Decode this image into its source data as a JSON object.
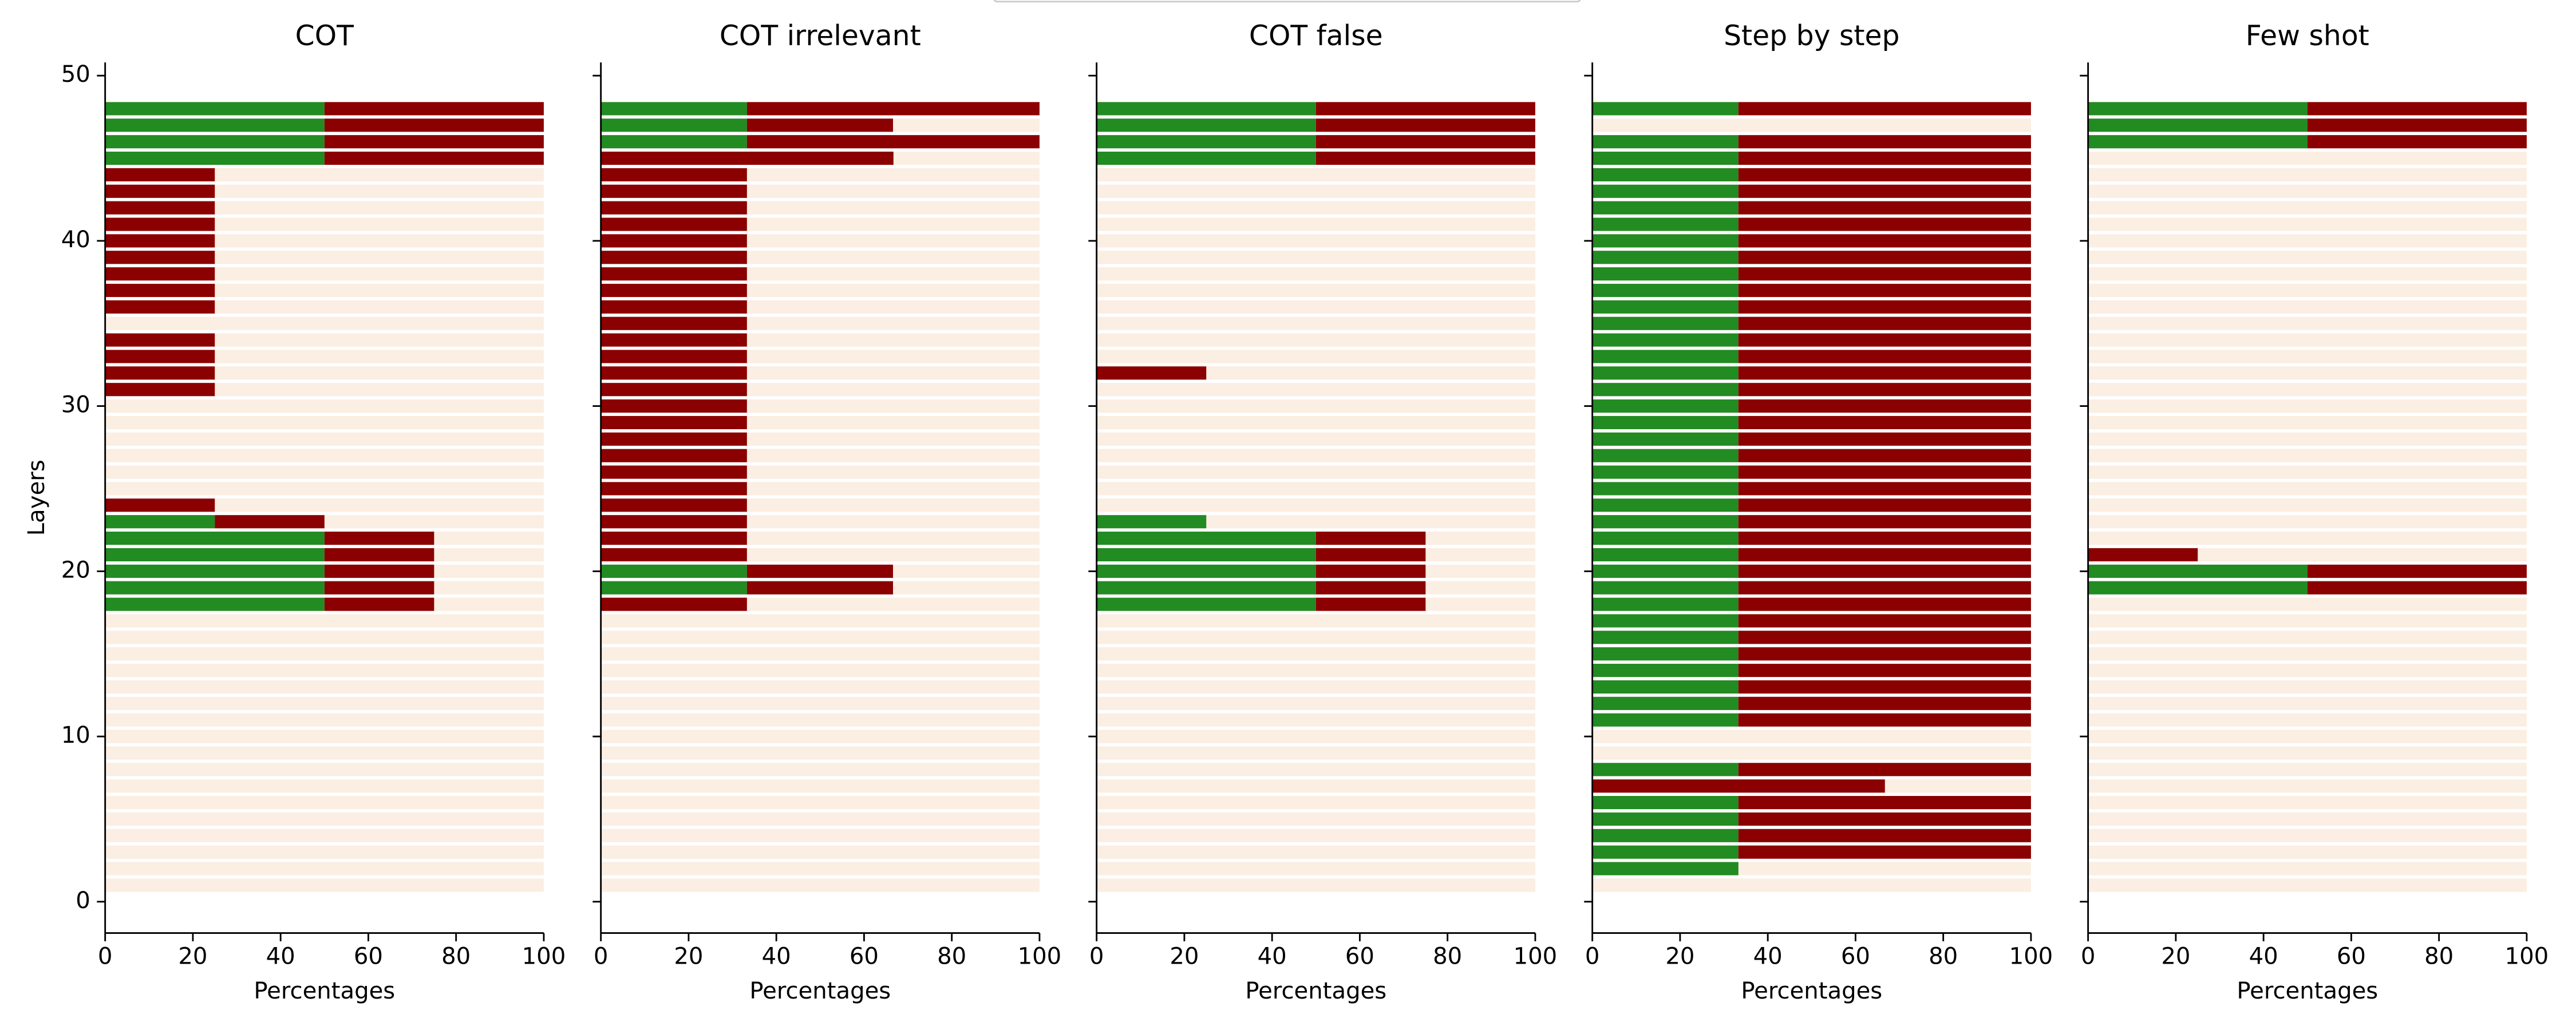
{
  "chart_data": [
    {
      "type": "barh",
      "title": "COT",
      "x_label": "Percentages",
      "y_label": "Layers",
      "y": [
        1,
        2,
        3,
        4,
        5,
        6,
        7,
        8,
        9,
        10,
        11,
        12,
        13,
        14,
        15,
        16,
        17,
        18,
        19,
        20,
        21,
        22,
        23,
        24,
        25,
        26,
        27,
        28,
        29,
        30,
        31,
        32,
        33,
        34,
        35,
        36,
        37,
        38,
        39,
        40,
        41,
        42,
        43,
        44,
        45,
        46,
        47,
        48
      ],
      "series": [
        {
          "color": "#228b22",
          "values": [
            0,
            0,
            0,
            0,
            0,
            0,
            0,
            0,
            0,
            0,
            0,
            0,
            0,
            0,
            0,
            0,
            0,
            50,
            50,
            50,
            50,
            50,
            25,
            0,
            0,
            0,
            0,
            0,
            0,
            0,
            0,
            0,
            0,
            0,
            0,
            0,
            0,
            0,
            0,
            0,
            0,
            0,
            0,
            0,
            50,
            50,
            50,
            50
          ]
        },
        {
          "color": "#8b0000",
          "values": [
            0,
            0,
            0,
            0,
            0,
            0,
            0,
            0,
            0,
            0,
            0,
            0,
            0,
            0,
            0,
            0,
            0,
            25,
            25,
            25,
            25,
            25,
            25,
            25,
            0,
            0,
            0,
            0,
            0,
            0,
            25,
            25,
            25,
            25,
            0,
            25,
            25,
            25,
            25,
            25,
            25,
            25,
            25,
            25,
            50,
            50,
            50,
            50
          ]
        }
      ],
      "row_color": "#fbeee2",
      "xlim": [
        0,
        100
      ],
      "xticks": [
        0,
        20,
        40,
        60,
        80,
        100
      ],
      "ylim": [
        -1.9,
        50.8
      ],
      "yticks": [
        0,
        10,
        20,
        30,
        40,
        50
      ],
      "ytick_labels": true
    },
    {
      "type": "barh",
      "title": "COT irrelevant",
      "x_label": "Percentages",
      "y": [
        1,
        2,
        3,
        4,
        5,
        6,
        7,
        8,
        9,
        10,
        11,
        12,
        13,
        14,
        15,
        16,
        17,
        18,
        19,
        20,
        21,
        22,
        23,
        24,
        25,
        26,
        27,
        28,
        29,
        30,
        31,
        32,
        33,
        34,
        35,
        36,
        37,
        38,
        39,
        40,
        41,
        42,
        43,
        44,
        45,
        46,
        47,
        48
      ],
      "series": [
        {
          "color": "#228b22",
          "values": [
            0,
            0,
            0,
            0,
            0,
            0,
            0,
            0,
            0,
            0,
            0,
            0,
            0,
            0,
            0,
            0,
            0,
            0,
            33.3,
            33.3,
            0,
            0,
            0,
            0,
            0,
            0,
            0,
            0,
            0,
            0,
            0,
            0,
            0,
            0,
            0,
            0,
            0,
            0,
            0,
            0,
            0,
            0,
            0,
            0,
            0,
            33.3,
            33.3,
            33.3
          ]
        },
        {
          "color": "#8b0000",
          "values": [
            0,
            0,
            0,
            0,
            0,
            0,
            0,
            0,
            0,
            0,
            0,
            0,
            0,
            0,
            0,
            0,
            0,
            33.3,
            33.3,
            33.3,
            33.3,
            33.3,
            33.3,
            33.3,
            33.3,
            33.3,
            33.3,
            33.3,
            33.3,
            33.3,
            33.3,
            33.3,
            33.3,
            33.3,
            33.3,
            33.3,
            33.3,
            33.3,
            33.3,
            33.3,
            33.3,
            33.3,
            33.3,
            33.3,
            66.7,
            66.7,
            33.3,
            66.7
          ]
        }
      ],
      "row_color": "#fbeee2",
      "xlim": [
        0,
        100
      ],
      "xticks": [
        0,
        20,
        40,
        60,
        80,
        100
      ],
      "ylim": [
        -1.9,
        50.8
      ],
      "yticks": [
        0,
        10,
        20,
        30,
        40,
        50
      ],
      "ytick_labels": false
    },
    {
      "type": "barh",
      "title": "COT false",
      "x_label": "Percentages",
      "y": [
        1,
        2,
        3,
        4,
        5,
        6,
        7,
        8,
        9,
        10,
        11,
        12,
        13,
        14,
        15,
        16,
        17,
        18,
        19,
        20,
        21,
        22,
        23,
        24,
        25,
        26,
        27,
        28,
        29,
        30,
        31,
        32,
        33,
        34,
        35,
        36,
        37,
        38,
        39,
        40,
        41,
        42,
        43,
        44,
        45,
        46,
        47,
        48
      ],
      "series": [
        {
          "color": "#228b22",
          "values": [
            0,
            0,
            0,
            0,
            0,
            0,
            0,
            0,
            0,
            0,
            0,
            0,
            0,
            0,
            0,
            0,
            0,
            50,
            50,
            50,
            50,
            50,
            25,
            0,
            0,
            0,
            0,
            0,
            0,
            0,
            0,
            0,
            0,
            0,
            0,
            0,
            0,
            0,
            0,
            0,
            0,
            0,
            0,
            0,
            50,
            50,
            50,
            50
          ]
        },
        {
          "color": "#8b0000",
          "values": [
            0,
            0,
            0,
            0,
            0,
            0,
            0,
            0,
            0,
            0,
            0,
            0,
            0,
            0,
            0,
            0,
            0,
            25,
            25,
            25,
            25,
            25,
            0,
            0,
            0,
            0,
            0,
            0,
            0,
            0,
            0,
            25,
            0,
            0,
            0,
            0,
            0,
            0,
            0,
            0,
            0,
            0,
            0,
            0,
            50,
            50,
            50,
            50
          ]
        }
      ],
      "row_color": "#fbeee2",
      "xlim": [
        0,
        100
      ],
      "xticks": [
        0,
        20,
        40,
        60,
        80,
        100
      ],
      "ylim": [
        -1.9,
        50.8
      ],
      "yticks": [
        0,
        10,
        20,
        30,
        40,
        50
      ],
      "ytick_labels": false
    },
    {
      "type": "barh",
      "title": "Step by step",
      "x_label": "Percentages",
      "y": [
        1,
        2,
        3,
        4,
        5,
        6,
        7,
        8,
        9,
        10,
        11,
        12,
        13,
        14,
        15,
        16,
        17,
        18,
        19,
        20,
        21,
        22,
        23,
        24,
        25,
        26,
        27,
        28,
        29,
        30,
        31,
        32,
        33,
        34,
        35,
        36,
        37,
        38,
        39,
        40,
        41,
        42,
        43,
        44,
        45,
        46,
        47,
        48
      ],
      "series": [
        {
          "color": "#228b22",
          "values": [
            0,
            33.3,
            33.3,
            33.3,
            33.3,
            33.3,
            0,
            33.3,
            0,
            0,
            33.3,
            33.3,
            33.3,
            33.3,
            33.3,
            33.3,
            33.3,
            33.3,
            33.3,
            33.3,
            33.3,
            33.3,
            33.3,
            33.3,
            33.3,
            33.3,
            33.3,
            33.3,
            33.3,
            33.3,
            33.3,
            33.3,
            33.3,
            33.3,
            33.3,
            33.3,
            33.3,
            33.3,
            33.3,
            33.3,
            33.3,
            33.3,
            33.3,
            33.3,
            33.3,
            33.3,
            0,
            33.3
          ]
        },
        {
          "color": "#8b0000",
          "values": [
            0,
            0,
            66.7,
            66.7,
            66.7,
            66.7,
            66.7,
            66.7,
            0,
            0,
            66.7,
            66.7,
            66.7,
            66.7,
            66.7,
            66.7,
            66.7,
            66.7,
            66.7,
            66.7,
            66.7,
            66.7,
            66.7,
            66.7,
            66.7,
            66.7,
            66.7,
            66.7,
            66.7,
            66.7,
            66.7,
            66.7,
            66.7,
            66.7,
            66.7,
            66.7,
            66.7,
            66.7,
            66.7,
            66.7,
            66.7,
            66.7,
            66.7,
            66.7,
            66.7,
            66.7,
            0,
            66.7
          ]
        }
      ],
      "row_color": "#fbeee2",
      "xlim": [
        0,
        100
      ],
      "xticks": [
        0,
        20,
        40,
        60,
        80,
        100
      ],
      "ylim": [
        -1.9,
        50.8
      ],
      "yticks": [
        0,
        10,
        20,
        30,
        40,
        50
      ],
      "ytick_labels": false
    },
    {
      "type": "barh",
      "title": "Few shot",
      "x_label": "Percentages",
      "y": [
        1,
        2,
        3,
        4,
        5,
        6,
        7,
        8,
        9,
        10,
        11,
        12,
        13,
        14,
        15,
        16,
        17,
        18,
        19,
        20,
        21,
        22,
        23,
        24,
        25,
        26,
        27,
        28,
        29,
        30,
        31,
        32,
        33,
        34,
        35,
        36,
        37,
        38,
        39,
        40,
        41,
        42,
        43,
        44,
        45,
        46,
        47,
        48
      ],
      "series": [
        {
          "color": "#228b22",
          "values": [
            0,
            0,
            0,
            0,
            0,
            0,
            0,
            0,
            0,
            0,
            0,
            0,
            0,
            0,
            0,
            0,
            0,
            0,
            50,
            50,
            0,
            0,
            0,
            0,
            0,
            0,
            0,
            0,
            0,
            0,
            0,
            0,
            0,
            0,
            0,
            0,
            0,
            0,
            0,
            0,
            0,
            0,
            0,
            0,
            0,
            50,
            50,
            50
          ]
        },
        {
          "color": "#8b0000",
          "values": [
            0,
            0,
            0,
            0,
            0,
            0,
            0,
            0,
            0,
            0,
            0,
            0,
            0,
            0,
            0,
            0,
            0,
            0,
            50,
            50,
            25,
            0,
            0,
            0,
            0,
            0,
            0,
            0,
            0,
            0,
            0,
            0,
            0,
            0,
            0,
            0,
            0,
            0,
            0,
            0,
            0,
            0,
            0,
            0,
            0,
            50,
            50,
            50
          ]
        }
      ],
      "row_color": "#fbeee2",
      "xlim": [
        0,
        100
      ],
      "xticks": [
        0,
        20,
        40,
        60,
        80,
        100
      ],
      "ylim": [
        -1.9,
        50.8
      ],
      "yticks": [
        0,
        10,
        20,
        30,
        40,
        50
      ],
      "ytick_labels": false
    }
  ]
}
